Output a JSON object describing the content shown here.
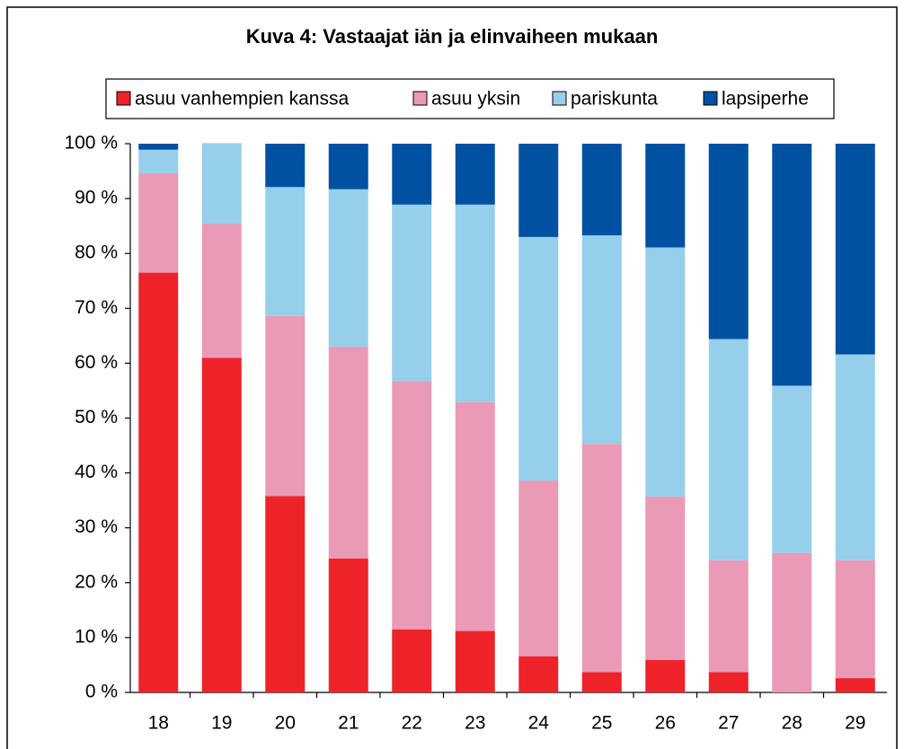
{
  "chart_data": {
    "type": "stacked_bar",
    "title": "Kuva 4: Vastaajat iän ja elinvaiheen mukaan",
    "categories": [
      "18",
      "19",
      "20",
      "21",
      "22",
      "23",
      "24",
      "25",
      "26",
      "27",
      "28",
      "29"
    ],
    "series": [
      {
        "name": "asuu vanhempien kanssa",
        "color": "#ee2229",
        "values": [
          76.5,
          61,
          35.8,
          24.4,
          11.5,
          11.2,
          6.6,
          3.7,
          5.9,
          3.7,
          0,
          2.6
        ]
      },
      {
        "name": "asuu yksin",
        "color": "#ea9ab6",
        "values": [
          18.1,
          24.5,
          32.8,
          38.6,
          45.2,
          41.7,
          32,
          41.6,
          29.8,
          20.4,
          25.4,
          21.5
        ]
      },
      {
        "name": "pariskunta",
        "color": "#95cfeb",
        "values": [
          4.3,
          14.6,
          23.5,
          28.7,
          32.2,
          36,
          44.4,
          38,
          45.4,
          40.3,
          30.5,
          37.5
        ]
      },
      {
        "name": "lapsiperhe",
        "color": "#0051a2",
        "values": [
          1.1,
          0,
          7.9,
          8.3,
          11.1,
          11.1,
          17,
          16.7,
          18.9,
          35.6,
          44.1,
          38.4
        ]
      }
    ],
    "ylim": [
      0,
      100
    ],
    "yticks": [
      {
        "value": 0,
        "label": "0 %"
      },
      {
        "value": 10,
        "label": "10 %"
      },
      {
        "value": 20,
        "label": "20 %"
      },
      {
        "value": 30,
        "label": "30 %"
      },
      {
        "value": 40,
        "label": "40 %"
      },
      {
        "value": 50,
        "label": "50 %"
      },
      {
        "value": 60,
        "label": "60 %"
      },
      {
        "value": 70,
        "label": "70 %"
      },
      {
        "value": 80,
        "label": "80 %"
      },
      {
        "value": 90,
        "label": "90 %"
      },
      {
        "value": 100,
        "label": "100 %"
      }
    ],
    "legend": "top"
  }
}
